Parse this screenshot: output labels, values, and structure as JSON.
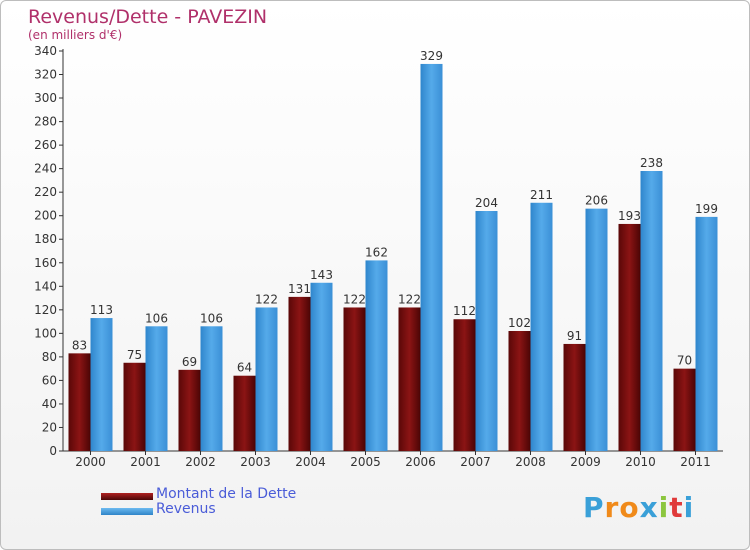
{
  "header": {
    "title": "Revenus/Dette - PAVEZIN",
    "subtitle": "(en milliers d'€)"
  },
  "legend": {
    "debt_label": "Montant de la Dette",
    "revenue_label": "Revenus"
  },
  "logo": {
    "letters": [
      "P",
      "r",
      "o",
      "x",
      "i",
      "t",
      "i"
    ],
    "colors": [
      "#3aa0d8",
      "#f08a1a",
      "#f08a1a",
      "#3aa0d8",
      "#8cc63f",
      "#e03a3a",
      "#3aa0d8"
    ]
  },
  "colors": {
    "debt": "#8b0f0f",
    "revenue": "#46a0e6",
    "accent_text": "#b0306a"
  },
  "chart_data": {
    "type": "bar",
    "categories": [
      "2000",
      "2001",
      "2002",
      "2003",
      "2004",
      "2005",
      "2006",
      "2007",
      "2008",
      "2009",
      "2010",
      "2011"
    ],
    "series": [
      {
        "name": "Montant de la Dette",
        "values": [
          83,
          75,
          69,
          64,
          131,
          122,
          122,
          112,
          102,
          91,
          193,
          70
        ]
      },
      {
        "name": "Revenus",
        "values": [
          113,
          106,
          106,
          122,
          143,
          162,
          329,
          204,
          211,
          206,
          238,
          199
        ]
      }
    ],
    "title": "Revenus/Dette - PAVEZIN",
    "ylabel": "(en milliers d'€)",
    "ylim": [
      0,
      340
    ],
    "ytick_step": 20,
    "grid": false,
    "legend_position": "bottom-left"
  }
}
